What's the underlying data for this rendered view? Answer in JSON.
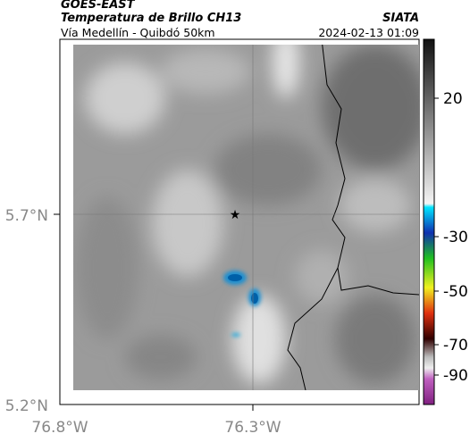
{
  "header": {
    "source": "GOES-EAST",
    "title": "Temperatura de Brillo CH13",
    "brand": "SIATA",
    "route": "Vía Medellín - Quibdó 50km",
    "timestamp": "2024-02-13 01:09"
  },
  "axes": {
    "lat_labels": [
      "5.7°N",
      "5.2°N"
    ],
    "lon_labels": [
      "76.8°W",
      "76.3°W"
    ]
  },
  "colorbar": {
    "labels": [
      "20",
      "-30",
      "-50",
      "-70",
      "-90"
    ]
  }
}
